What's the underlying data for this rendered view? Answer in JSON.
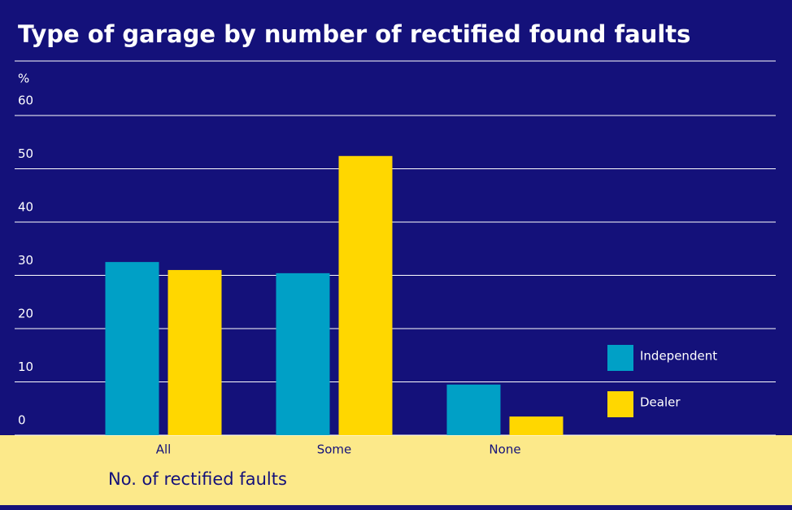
{
  "chart_data": {
    "type": "bar",
    "title": "Type of garage by number of rectified found faults",
    "y_label": "%",
    "x_label": "No. of rectified faults",
    "categories": [
      "All",
      "Some",
      "None"
    ],
    "series": [
      {
        "name": "Independent",
        "color": "#00a0c6",
        "values": [
          32.5,
          30.4,
          9.5
        ]
      },
      {
        "name": "Dealer",
        "color": "#ffd700",
        "values": [
          31,
          52.4,
          3.5
        ]
      }
    ],
    "ylim": [
      0,
      60
    ],
    "yticks": [
      0,
      10,
      20,
      30,
      40,
      50,
      60
    ],
    "grid": true,
    "legend": "right"
  }
}
